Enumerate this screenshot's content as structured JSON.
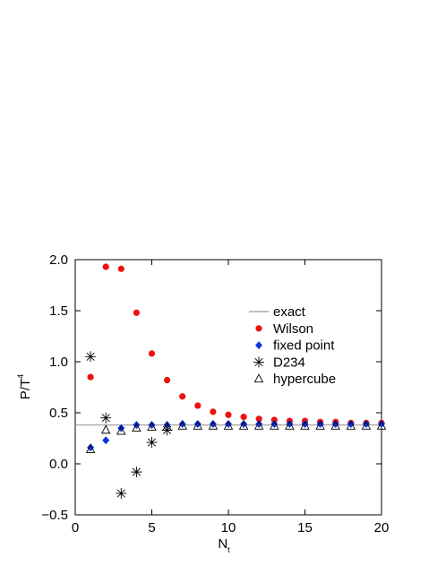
{
  "chart_data": {
    "type": "scatter",
    "y_label": "P/T",
    "y_label_superscript": "4",
    "x_label": "N",
    "x_label_subscript": "t",
    "xlim": [
      0,
      20
    ],
    "xticks": [
      0,
      5,
      10,
      15,
      20
    ],
    "ylim": [
      -0.5,
      2.0
    ],
    "yticks": [
      {
        "value": -0.5,
        "label": "−0.5"
      },
      {
        "value": 0,
        "label": "0.0"
      },
      0.5,
      {
        "value": 1,
        "label": "1.0"
      },
      1.5,
      {
        "value": 2,
        "label": "2.0"
      }
    ],
    "legend": "upper right",
    "series": [
      {
        "name": "exact",
        "color": "#999999",
        "marker": "line",
        "x": [
          0,
          20
        ],
        "values": [
          0.38,
          0.38
        ]
      },
      {
        "name": "Wilson",
        "color": "#ee1111",
        "marker": "circle",
        "x": [
          1,
          2,
          3,
          4,
          5,
          6,
          7,
          8,
          9,
          10,
          11,
          12,
          13,
          14,
          15,
          16,
          17,
          18,
          19,
          20
        ],
        "values": [
          0.85,
          1.93,
          1.91,
          1.48,
          1.08,
          0.82,
          0.66,
          0.57,
          0.51,
          0.48,
          0.46,
          0.44,
          0.43,
          0.42,
          0.42,
          0.41,
          0.41,
          0.4,
          0.4,
          0.4
        ]
      },
      {
        "name": "fixed point",
        "color": "#1133dd",
        "marker": "diamond",
        "x": [
          1,
          2,
          3,
          4,
          5,
          6,
          7,
          8,
          9,
          10,
          11,
          12,
          13,
          14,
          15,
          16,
          17,
          18,
          19,
          20
        ],
        "values": [
          0.16,
          0.23,
          0.35,
          0.38,
          0.38,
          0.38,
          0.39,
          0.39,
          0.39,
          0.39,
          0.39,
          0.39,
          0.39,
          0.39,
          0.39,
          0.39,
          0.39,
          0.39,
          0.39,
          0.39
        ]
      },
      {
        "name": "D234",
        "color": "#000000",
        "marker": "asterisk",
        "x": [
          1,
          2,
          3,
          4,
          5,
          6
        ],
        "values": [
          1.05,
          0.45,
          -0.29,
          -0.08,
          0.21,
          0.33
        ]
      },
      {
        "name": "hypercube",
        "color": "#000000",
        "marker": "triangle",
        "x": [
          1,
          2,
          3,
          4,
          5,
          6,
          7,
          8,
          9,
          10,
          11,
          12,
          13,
          14,
          15,
          16,
          17,
          18,
          19,
          20
        ],
        "values": [
          0.14,
          0.33,
          0.32,
          0.35,
          0.36,
          0.36,
          0.37,
          0.37,
          0.37,
          0.37,
          0.37,
          0.37,
          0.37,
          0.37,
          0.37,
          0.37,
          0.37,
          0.37,
          0.37,
          0.37
        ]
      }
    ]
  }
}
